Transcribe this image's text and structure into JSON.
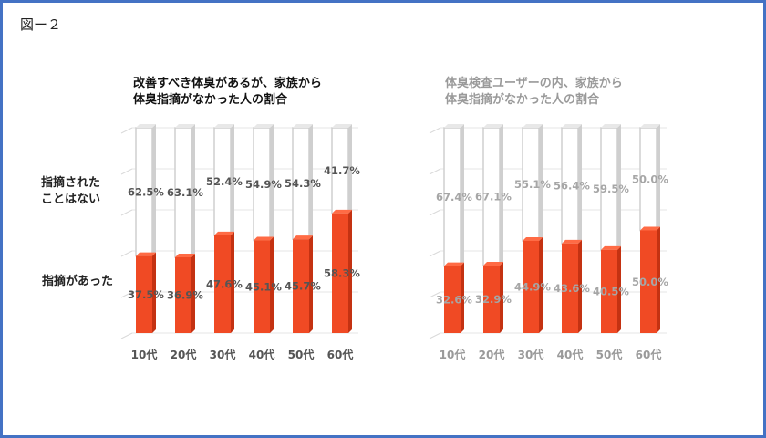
{
  "figure_label": "図ー２",
  "legend_labels": {
    "top": [
      "指摘された",
      "ことはない"
    ],
    "bottom": "指摘があった"
  },
  "colors": {
    "accent": "#f04a24",
    "frame": "#4472c4",
    "bar_top_shade": "#cfcfcf"
  },
  "chart_data": [
    {
      "type": "bar",
      "stacked": true,
      "title": [
        "改善すべき体臭があるが、家族から",
        "体臭指摘がなかった人の割合"
      ],
      "categories": [
        "10代",
        "20代",
        "30代",
        "40代",
        "50代",
        "60代"
      ],
      "series": [
        {
          "name": "指摘があった",
          "values": [
            37.5,
            36.9,
            47.6,
            45.1,
            45.7,
            58.3
          ]
        },
        {
          "name": "指摘されたことはない",
          "values": [
            62.5,
            63.1,
            52.4,
            54.9,
            54.3,
            41.7
          ]
        }
      ],
      "value_labels_bottom": [
        "37.5%",
        "36.9%",
        "47.6%",
        "45.1%",
        "45.7%",
        "58.3%"
      ],
      "value_labels_top": [
        "62.5%",
        "63.1%",
        "52.4%",
        "54.9%",
        "54.3%",
        "41.7%"
      ],
      "ylim": [
        0,
        100
      ],
      "grid": true
    },
    {
      "type": "bar",
      "stacked": true,
      "title": [
        "体臭検査ユーザーの内、家族から",
        "体臭指摘がなかった人の割合"
      ],
      "categories": [
        "10代",
        "20代",
        "30代",
        "40代",
        "50代",
        "60代"
      ],
      "series": [
        {
          "name": "指摘があった",
          "values": [
            32.6,
            32.9,
            44.9,
            43.6,
            40.5,
            50.0
          ]
        },
        {
          "name": "指摘されたことはない",
          "values": [
            67.4,
            67.1,
            55.1,
            56.4,
            59.5,
            50.0
          ]
        }
      ],
      "value_labels_bottom": [
        "32.6%",
        "32.9%",
        "44.9%",
        "43.6%",
        "40.5%",
        "50.0%"
      ],
      "value_labels_top": [
        "67.4%",
        "67.1%",
        "55.1%",
        "56.4%",
        "59.5%",
        "50.0%"
      ],
      "ylim": [
        0,
        100
      ],
      "grid": true
    }
  ]
}
